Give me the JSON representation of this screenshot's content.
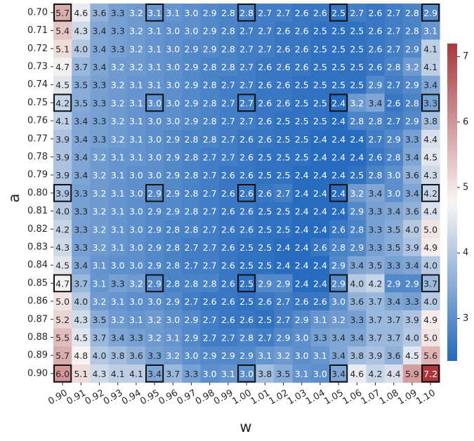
{
  "chart_data": {
    "type": "heatmap",
    "xlabel": "w",
    "ylabel": "a",
    "x_categories": [
      "0.90",
      "0.91",
      "0.92",
      "0.93",
      "0.94",
      "0.95",
      "0.96",
      "0.97",
      "0.98",
      "0.99",
      "1.00",
      "1.01",
      "1.02",
      "1.03",
      "1.04",
      "1.05",
      "1.06",
      "1.07",
      "1.08",
      "1.09",
      "1.10"
    ],
    "y_categories": [
      "0.70",
      "0.71",
      "0.72",
      "0.73",
      "0.74",
      "0.75",
      "0.76",
      "0.77",
      "0.78",
      "0.79",
      "0.80",
      "0.81",
      "0.82",
      "0.83",
      "0.84",
      "0.85",
      "0.86",
      "0.87",
      "0.88",
      "0.89",
      "0.90"
    ],
    "values": [
      [
        5.7,
        4.6,
        3.6,
        3.3,
        3.2,
        3.1,
        3.1,
        3.0,
        2.9,
        2.8,
        2.8,
        2.7,
        2.7,
        2.6,
        2.6,
        2.5,
        2.7,
        2.6,
        2.7,
        2.8,
        2.9
      ],
      [
        5.4,
        4.3,
        3.4,
        3.3,
        3.2,
        3.1,
        3.0,
        3.0,
        2.9,
        2.8,
        2.7,
        2.7,
        2.6,
        2.6,
        2.5,
        2.5,
        2.5,
        2.6,
        2.7,
        2.8,
        3.1
      ],
      [
        5.1,
        4.0,
        3.4,
        3.3,
        3.2,
        3.1,
        3.0,
        2.9,
        2.9,
        2.8,
        2.7,
        2.7,
        2.6,
        2.6,
        2.5,
        2.5,
        2.5,
        2.6,
        2.7,
        2.9,
        4.1
      ],
      [
        4.7,
        3.7,
        3.4,
        3.2,
        3.2,
        3.1,
        3.0,
        2.9,
        2.8,
        2.8,
        2.7,
        2.6,
        2.6,
        2.6,
        2.5,
        2.5,
        2.5,
        2.6,
        2.8,
        3.2,
        4.1
      ],
      [
        4.5,
        3.5,
        3.3,
        3.2,
        3.1,
        3.1,
        3.0,
        2.9,
        2.8,
        2.7,
        2.7,
        2.6,
        2.6,
        2.5,
        2.5,
        2.5,
        2.5,
        2.9,
        2.7,
        2.9,
        3.4
      ],
      [
        4.2,
        3.5,
        3.3,
        3.2,
        3.1,
        3.0,
        3.0,
        2.9,
        2.8,
        2.7,
        2.7,
        2.6,
        2.6,
        2.5,
        2.5,
        2.4,
        3.2,
        3.4,
        2.6,
        2.8,
        3.3
      ],
      [
        4.1,
        3.4,
        3.3,
        3.2,
        3.1,
        3.0,
        3.0,
        2.9,
        2.8,
        2.7,
        2.7,
        2.6,
        2.5,
        2.5,
        2.5,
        2.4,
        2.8,
        2.8,
        2.7,
        2.9,
        3.8
      ],
      [
        3.9,
        3.4,
        3.3,
        3.2,
        3.1,
        3.0,
        2.9,
        2.8,
        2.8,
        2.7,
        2.6,
        2.6,
        2.5,
        2.5,
        2.4,
        2.4,
        2.4,
        2.7,
        2.9,
        3.3,
        4.4
      ],
      [
        3.9,
        3.4,
        3.2,
        3.1,
        3.1,
        3.0,
        2.9,
        2.8,
        2.7,
        2.7,
        2.6,
        2.5,
        2.5,
        2.5,
        2.4,
        2.4,
        2.4,
        2.6,
        2.8,
        3.4,
        4.5
      ],
      [
        3.9,
        3.4,
        3.2,
        3.1,
        3.0,
        3.0,
        2.9,
        2.8,
        2.7,
        2.6,
        2.6,
        2.5,
        2.5,
        2.4,
        2.4,
        2.4,
        2.5,
        2.8,
        3.0,
        3.6,
        4.3
      ],
      [
        3.9,
        3.3,
        3.2,
        3.1,
        3.0,
        2.9,
        2.9,
        2.8,
        2.7,
        2.6,
        2.6,
        2.6,
        2.7,
        2.4,
        2.4,
        2.4,
        3.2,
        3.4,
        3.0,
        3.4,
        4.2
      ],
      [
        4.0,
        3.3,
        3.2,
        3.1,
        3.0,
        2.9,
        2.9,
        2.8,
        2.7,
        2.6,
        2.6,
        2.5,
        2.5,
        2.4,
        2.4,
        2.4,
        2.9,
        3.3,
        3.4,
        3.6,
        4.4
      ],
      [
        4.2,
        3.3,
        3.2,
        3.1,
        3.0,
        2.9,
        2.8,
        2.8,
        2.7,
        2.6,
        2.6,
        2.5,
        2.5,
        2.4,
        2.4,
        2.6,
        2.8,
        3.3,
        3.5,
        4.0,
        5.0
      ],
      [
        4.3,
        3.3,
        3.2,
        3.1,
        3.0,
        2.9,
        2.8,
        2.7,
        2.7,
        2.6,
        2.5,
        2.5,
        2.4,
        2.4,
        2.6,
        2.8,
        2.9,
        3.3,
        3.5,
        3.9,
        4.9
      ],
      [
        4.5,
        3.4,
        3.1,
        3.0,
        3.0,
        2.9,
        2.8,
        2.7,
        2.7,
        2.6,
        2.5,
        2.5,
        2.4,
        2.4,
        2.4,
        2.9,
        3.4,
        3.5,
        3.3,
        3.4,
        4.0
      ],
      [
        4.7,
        3.7,
        3.1,
        3.3,
        3.2,
        2.9,
        2.8,
        2.8,
        2.8,
        2.6,
        2.5,
        2.9,
        2.9,
        2.4,
        2.4,
        2.9,
        4.0,
        4.2,
        2.9,
        2.9,
        3.7
      ],
      [
        5.0,
        4.0,
        3.2,
        3.1,
        3.0,
        3.0,
        2.9,
        2.7,
        2.6,
        2.6,
        2.5,
        2.6,
        2.7,
        2.6,
        2.6,
        3.0,
        3.6,
        3.7,
        3.4,
        3.3,
        4.0
      ],
      [
        5.2,
        4.3,
        3.5,
        3.2,
        3.1,
        3.2,
        3.0,
        2.9,
        2.7,
        2.6,
        2.6,
        2.5,
        2.7,
        2.9,
        3.1,
        3.2,
        3.3,
        3.7,
        3.7,
        3.9,
        4.9
      ],
      [
        5.5,
        4.5,
        3.7,
        3.4,
        3.3,
        3.2,
        3.1,
        2.9,
        2.7,
        2.7,
        2.8,
        2.7,
        2.9,
        3.0,
        3.3,
        3.4,
        3.4,
        3.7,
        3.7,
        4.0,
        5.0
      ],
      [
        5.7,
        4.8,
        4.0,
        3.8,
        3.6,
        3.3,
        3.2,
        3.0,
        2.9,
        2.9,
        2.9,
        3.1,
        3.2,
        3.0,
        3.1,
        3.4,
        3.8,
        3.9,
        3.6,
        4.5,
        5.6
      ],
      [
        6.0,
        5.1,
        4.3,
        4.1,
        4.1,
        3.4,
        3.7,
        3.3,
        3.0,
        3.1,
        3.0,
        3.8,
        3.5,
        3.1,
        3.0,
        3.4,
        4.6,
        4.2,
        4.4,
        5.9,
        7.2
      ]
    ],
    "highlighted_rows": [
      "0.70",
      "0.75",
      "0.80",
      "0.85",
      "0.90"
    ],
    "highlighted_cols": [
      "0.90",
      "0.95",
      "1.00",
      "1.05",
      "1.10"
    ],
    "colorbar": {
      "ticks": [
        3,
        4,
        5,
        6,
        7
      ],
      "vmin": 2.35,
      "vmax": 7.2,
      "colormap": "vlag",
      "colors": {
        "low": "#2369bd",
        "mid": "#f9f5f4",
        "high": "#a9373b"
      }
    },
    "grid": false,
    "cell_labels": true
  }
}
